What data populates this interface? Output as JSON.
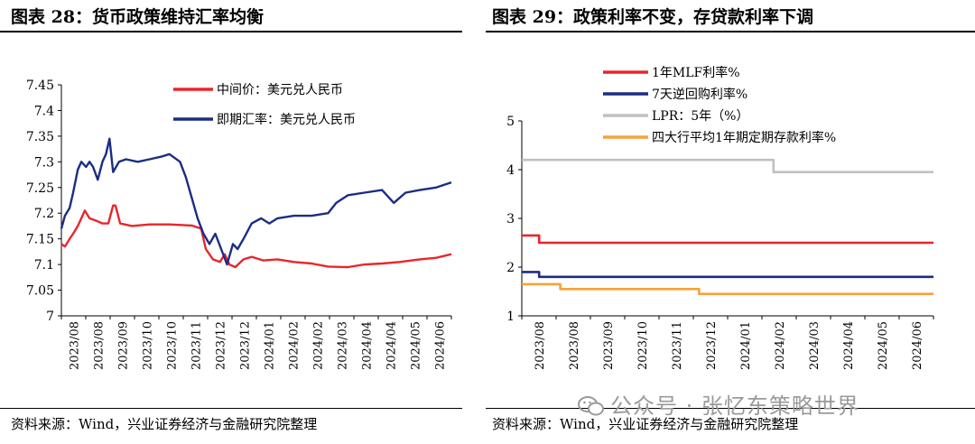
{
  "left": {
    "title": "图表 28：货币政策维持汇率均衡",
    "source": "资料来源：Wind，兴业证券经济与金融研究院整理"
  },
  "right": {
    "title": "图表 29：政策利率不变，存贷款利率下调",
    "source": "资料来源：Wind，兴业证券经济与金融研究院整理"
  },
  "watermark": "公众号 · 张忆东策略世界",
  "colors": {
    "red": "#e8262b",
    "navy": "#1b2d83",
    "gray": "#c0c0c0",
    "orange": "#f7a23b"
  },
  "chart_data": [
    {
      "type": "line",
      "title": "",
      "xlabel": "",
      "ylabel": "",
      "ylim": [
        7.0,
        7.45
      ],
      "yticks": [
        "7.45",
        "7.4",
        "7.35",
        "7.3",
        "7.25",
        "7.2",
        "7.15",
        "7.1",
        "7.05",
        "7"
      ],
      "xticks": [
        "2023/08",
        "2023/08",
        "2023/09",
        "2023/10",
        "2023/10",
        "2023/11",
        "2023/12",
        "2023/12",
        "2024/01",
        "2024/02",
        "2024/02",
        "2024/03",
        "2024/04",
        "2024/04",
        "2024/05",
        "2024/06"
      ],
      "x_range": [
        "2023-08-01",
        "2024-06-28"
      ],
      "grid": false,
      "legend_position": "top-center",
      "series": [
        {
          "name": "中间价：美元兑人民币",
          "color": "#e8262b",
          "points": [
            [
              "2023-08-01",
              7.14
            ],
            [
              "2023-08-04",
              7.135
            ],
            [
              "2023-08-08",
              7.15
            ],
            [
              "2023-08-11",
              7.16
            ],
            [
              "2023-08-15",
              7.175
            ],
            [
              "2023-08-18",
              7.19
            ],
            [
              "2023-08-21",
              7.205
            ],
            [
              "2023-08-25",
              7.19
            ],
            [
              "2023-08-31",
              7.185
            ],
            [
              "2023-09-05",
              7.18
            ],
            [
              "2023-09-10",
              7.18
            ],
            [
              "2023-09-14",
              7.215
            ],
            [
              "2023-09-16",
              7.215
            ],
            [
              "2023-09-20",
              7.18
            ],
            [
              "2023-09-30",
              7.175
            ],
            [
              "2023-10-15",
              7.178
            ],
            [
              "2023-11-01",
              7.178
            ],
            [
              "2023-11-20",
              7.176
            ],
            [
              "2023-11-28",
              7.17
            ],
            [
              "2023-12-02",
              7.13
            ],
            [
              "2023-12-08",
              7.11
            ],
            [
              "2023-12-14",
              7.105
            ],
            [
              "2023-12-18",
              7.12
            ],
            [
              "2023-12-22",
              7.1
            ],
            [
              "2023-12-27",
              7.095
            ],
            [
              "2024-01-03",
              7.11
            ],
            [
              "2024-01-10",
              7.115
            ],
            [
              "2024-01-20",
              7.108
            ],
            [
              "2024-02-01",
              7.11
            ],
            [
              "2024-02-15",
              7.105
            ],
            [
              "2024-03-01",
              7.102
            ],
            [
              "2024-03-15",
              7.096
            ],
            [
              "2024-04-01",
              7.095
            ],
            [
              "2024-04-15",
              7.1
            ],
            [
              "2024-04-30",
              7.102
            ],
            [
              "2024-05-15",
              7.105
            ],
            [
              "2024-06-01",
              7.11
            ],
            [
              "2024-06-15",
              7.113
            ],
            [
              "2024-06-28",
              7.12
            ]
          ]
        },
        {
          "name": "即期汇率：美元兑人民币",
          "color": "#1b2d83",
          "points": [
            [
              "2023-08-01",
              7.17
            ],
            [
              "2023-08-04",
              7.195
            ],
            [
              "2023-08-08",
              7.21
            ],
            [
              "2023-08-11",
              7.24
            ],
            [
              "2023-08-15",
              7.285
            ],
            [
              "2023-08-18",
              7.3
            ],
            [
              "2023-08-22",
              7.29
            ],
            [
              "2023-08-25",
              7.3
            ],
            [
              "2023-08-28",
              7.29
            ],
            [
              "2023-09-01",
              7.265
            ],
            [
              "2023-09-05",
              7.3
            ],
            [
              "2023-09-08",
              7.315
            ],
            [
              "2023-09-11",
              7.345
            ],
            [
              "2023-09-14",
              7.28
            ],
            [
              "2023-09-19",
              7.3
            ],
            [
              "2023-09-25",
              7.305
            ],
            [
              "2023-10-05",
              7.3
            ],
            [
              "2023-10-15",
              7.305
            ],
            [
              "2023-10-25",
              7.31
            ],
            [
              "2023-11-01",
              7.315
            ],
            [
              "2023-11-10",
              7.3
            ],
            [
              "2023-11-15",
              7.27
            ],
            [
              "2023-11-20",
              7.23
            ],
            [
              "2023-11-25",
              7.19
            ],
            [
              "2023-11-30",
              7.16
            ],
            [
              "2023-12-05",
              7.14
            ],
            [
              "2023-12-10",
              7.16
            ],
            [
              "2023-12-15",
              7.13
            ],
            [
              "2023-12-20",
              7.1
            ],
            [
              "2023-12-25",
              7.14
            ],
            [
              "2023-12-29",
              7.13
            ],
            [
              "2024-01-03",
              7.15
            ],
            [
              "2024-01-10",
              7.18
            ],
            [
              "2024-01-18",
              7.19
            ],
            [
              "2024-01-25",
              7.18
            ],
            [
              "2024-02-01",
              7.19
            ],
            [
              "2024-02-15",
              7.195
            ],
            [
              "2024-03-01",
              7.195
            ],
            [
              "2024-03-15",
              7.2
            ],
            [
              "2024-03-22",
              7.22
            ],
            [
              "2024-04-01",
              7.235
            ],
            [
              "2024-04-15",
              7.24
            ],
            [
              "2024-04-30",
              7.245
            ],
            [
              "2024-05-10",
              7.22
            ],
            [
              "2024-05-20",
              7.24
            ],
            [
              "2024-06-01",
              7.245
            ],
            [
              "2024-06-15",
              7.25
            ],
            [
              "2024-06-28",
              7.26
            ]
          ]
        }
      ]
    },
    {
      "type": "line",
      "title": "",
      "xlabel": "",
      "ylabel": "",
      "ylim": [
        1,
        5
      ],
      "yticks": [
        "5",
        "4",
        "3",
        "2",
        "1"
      ],
      "xticks": [
        "2023/08",
        "2023/08",
        "2023/09",
        "2023/10",
        "2023/11",
        "2023/12",
        "2024/01",
        "2024/02",
        "2024/03",
        "2024/04",
        "2024/05",
        "2024/06"
      ],
      "x_range": [
        "2023-08-01",
        "2024-06-28"
      ],
      "grid": false,
      "legend_position": "top-left",
      "series": [
        {
          "name": "1年MLF利率%",
          "color": "#e8262b",
          "step": true,
          "points": [
            [
              "2023-08-01",
              2.65
            ],
            [
              "2023-08-15",
              2.5
            ],
            [
              "2024-06-28",
              2.5
            ]
          ]
        },
        {
          "name": "7天逆回购利率%",
          "color": "#1b2d83",
          "step": true,
          "points": [
            [
              "2023-08-01",
              1.9
            ],
            [
              "2023-08-15",
              1.8
            ],
            [
              "2024-06-28",
              1.8
            ]
          ]
        },
        {
          "name": "LPR：5年（%）",
          "color": "#c0c0c0",
          "step": true,
          "points": [
            [
              "2023-08-01",
              4.2
            ],
            [
              "2024-02-20",
              3.95
            ],
            [
              "2024-06-28",
              3.95
            ]
          ]
        },
        {
          "name": "四大行平均1年期定期存款利率%",
          "color": "#f7a23b",
          "step": true,
          "points": [
            [
              "2023-08-01",
              1.65
            ],
            [
              "2023-09-01",
              1.55
            ],
            [
              "2023-12-22",
              1.45
            ],
            [
              "2024-06-28",
              1.45
            ]
          ]
        }
      ]
    }
  ]
}
